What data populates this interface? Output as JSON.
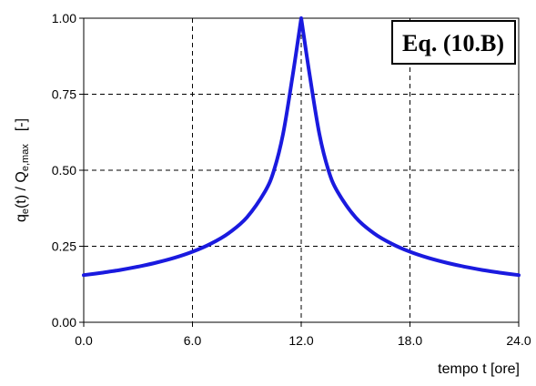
{
  "chart_data": {
    "type": "line",
    "xlabel": "tempo t [ore]",
    "ylabel": "q_e(t) / Q_e,max   [-]",
    "ylabel_parts": {
      "q": "q",
      "q_sub": "e",
      "mid": "(t) / Q",
      "Q_sub": "e,max",
      "unit": "[-]"
    },
    "xlim": [
      0,
      24
    ],
    "ylim": [
      0,
      1
    ],
    "x_ticks": [
      "0.0",
      "6.0",
      "12.0",
      "18.0",
      "24.0"
    ],
    "x_tick_values": [
      0,
      6,
      12,
      18,
      24
    ],
    "y_ticks": [
      "0.00",
      "0.25",
      "0.50",
      "0.75",
      "1.00"
    ],
    "y_tick_values": [
      0,
      0.25,
      0.5,
      0.75,
      1.0
    ],
    "grid": true,
    "annotation": "Eq. (10.B)",
    "line_color": "#1a1adf",
    "series": [
      {
        "x": [
          0,
          1,
          2,
          3,
          4,
          5,
          6,
          7,
          8,
          9,
          10,
          10.5,
          11,
          11.5,
          12,
          12.5,
          13,
          13.5,
          14,
          15,
          16,
          17,
          18,
          19,
          20,
          21,
          22,
          23,
          24
        ],
        "values": [
          0.155,
          0.163,
          0.172,
          0.183,
          0.196,
          0.212,
          0.232,
          0.258,
          0.293,
          0.345,
          0.43,
          0.5,
          0.62,
          0.8,
          1.0,
          0.8,
          0.62,
          0.5,
          0.43,
          0.345,
          0.293,
          0.258,
          0.232,
          0.212,
          0.196,
          0.183,
          0.172,
          0.163,
          0.155
        ]
      }
    ]
  }
}
